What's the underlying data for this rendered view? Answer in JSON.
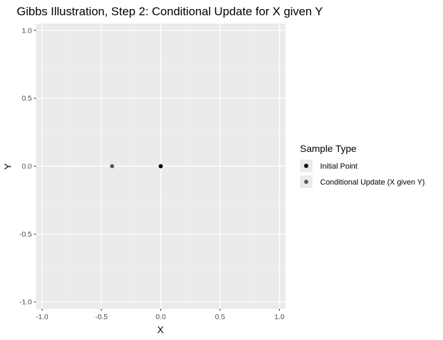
{
  "chart_data": {
    "type": "scatter",
    "title": "Gibbs Illustration, Step 2: Conditional Update for X given Y",
    "xlabel": "X",
    "ylabel": "Y",
    "xlim": [
      -1.05,
      1.05
    ],
    "ylim": [
      -1.05,
      1.05
    ],
    "x_ticks": [
      -1.0,
      -0.5,
      0.0,
      0.5,
      1.0
    ],
    "y_ticks": [
      -1.0,
      -0.5,
      0.0,
      0.5,
      1.0
    ],
    "x_tick_labels": [
      "-1.0",
      "-0.5",
      "0.0",
      "0.5",
      "1.0"
    ],
    "y_tick_labels": [
      "-1.0",
      "-0.5",
      "0.0",
      "0.5",
      "1.0"
    ],
    "grid": true,
    "legend": {
      "title": "Sample Type",
      "placement": "right",
      "entries": [
        {
          "label": "Initial Point",
          "color": "#000000"
        },
        {
          "label": "Conditional Update (X given Y)",
          "color": "#595959"
        }
      ]
    },
    "series": [
      {
        "name": "Initial Point",
        "color": "#000000",
        "points": [
          {
            "x": 0.0,
            "y": 0.0
          }
        ]
      },
      {
        "name": "Conditional Update (X given Y)",
        "color": "#595959",
        "points": [
          {
            "x": -0.41,
            "y": 0.0
          }
        ]
      }
    ],
    "colors": {
      "panel": "#ebebeb",
      "grid_major": "#ffffff",
      "grid_minor": "#f2f2f2",
      "tick_text": "#4d4d4d"
    }
  }
}
